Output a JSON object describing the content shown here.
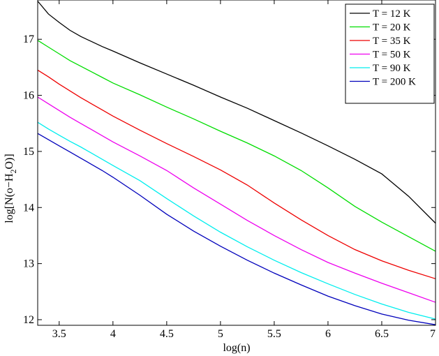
{
  "chart_data": {
    "type": "line",
    "xlabel": "log(n)",
    "ylabel_parts": {
      "main": "log[N(o−H",
      "sub": "2",
      "tail": "O)]"
    },
    "xlim": [
      3.3,
      7.0
    ],
    "ylim": [
      11.9,
      17.7
    ],
    "xticks": [
      3.5,
      4,
      4.5,
      5,
      5.5,
      6,
      6.5,
      7
    ],
    "xtick_labels": [
      "3.5",
      "4",
      "4.5",
      "5",
      "5.5",
      "6",
      "6.5",
      "7"
    ],
    "yticks": [
      12,
      13,
      14,
      15,
      16,
      17
    ],
    "ytick_labels": [
      "12",
      "13",
      "14",
      "15",
      "16",
      "17"
    ],
    "grid": false,
    "legend_position": "top-right",
    "x": [
      3.3,
      3.4,
      3.5,
      3.6,
      3.7,
      3.8,
      3.9,
      4.0,
      4.25,
      4.5,
      4.75,
      5.0,
      5.25,
      5.5,
      5.75,
      6.0,
      6.25,
      6.5,
      6.75,
      7.0
    ],
    "series": [
      {
        "name": "T = 12 K",
        "color": "#000000",
        "values": [
          17.68,
          17.45,
          17.3,
          17.16,
          17.05,
          16.96,
          16.87,
          16.79,
          16.58,
          16.38,
          16.18,
          15.97,
          15.77,
          15.55,
          15.33,
          15.1,
          14.86,
          14.6,
          14.2,
          13.72
        ]
      },
      {
        "name": "T = 20 K",
        "color": "#00dd00",
        "values": [
          16.98,
          16.86,
          16.74,
          16.62,
          16.52,
          16.42,
          16.32,
          16.22,
          16.01,
          15.79,
          15.58,
          15.36,
          15.15,
          14.92,
          14.66,
          14.35,
          14.02,
          13.74,
          13.48,
          13.22
        ]
      },
      {
        "name": "T = 35 K",
        "color": "#ee0000",
        "values": [
          16.45,
          16.33,
          16.2,
          16.08,
          15.96,
          15.85,
          15.74,
          15.63,
          15.38,
          15.14,
          14.91,
          14.67,
          14.4,
          14.08,
          13.78,
          13.5,
          13.25,
          13.05,
          12.88,
          12.73
        ]
      },
      {
        "name": "T = 50 K",
        "color": "#ee00ee",
        "values": [
          15.97,
          15.85,
          15.73,
          15.61,
          15.5,
          15.39,
          15.28,
          15.17,
          14.92,
          14.66,
          14.35,
          14.06,
          13.77,
          13.5,
          13.25,
          13.02,
          12.83,
          12.65,
          12.48,
          12.31
        ]
      },
      {
        "name": "T = 90 K",
        "color": "#00eeee",
        "values": [
          15.52,
          15.4,
          15.29,
          15.18,
          15.08,
          14.97,
          14.86,
          14.75,
          14.48,
          14.16,
          13.85,
          13.56,
          13.3,
          13.06,
          12.84,
          12.64,
          12.45,
          12.28,
          12.13,
          12.01
        ]
      },
      {
        "name": "T = 200 K",
        "color": "#0000bb",
        "values": [
          15.32,
          15.21,
          15.1,
          14.99,
          14.88,
          14.77,
          14.66,
          14.54,
          14.22,
          13.88,
          13.58,
          13.31,
          13.06,
          12.83,
          12.62,
          12.42,
          12.25,
          12.1,
          11.99,
          11.91
        ]
      }
    ]
  }
}
